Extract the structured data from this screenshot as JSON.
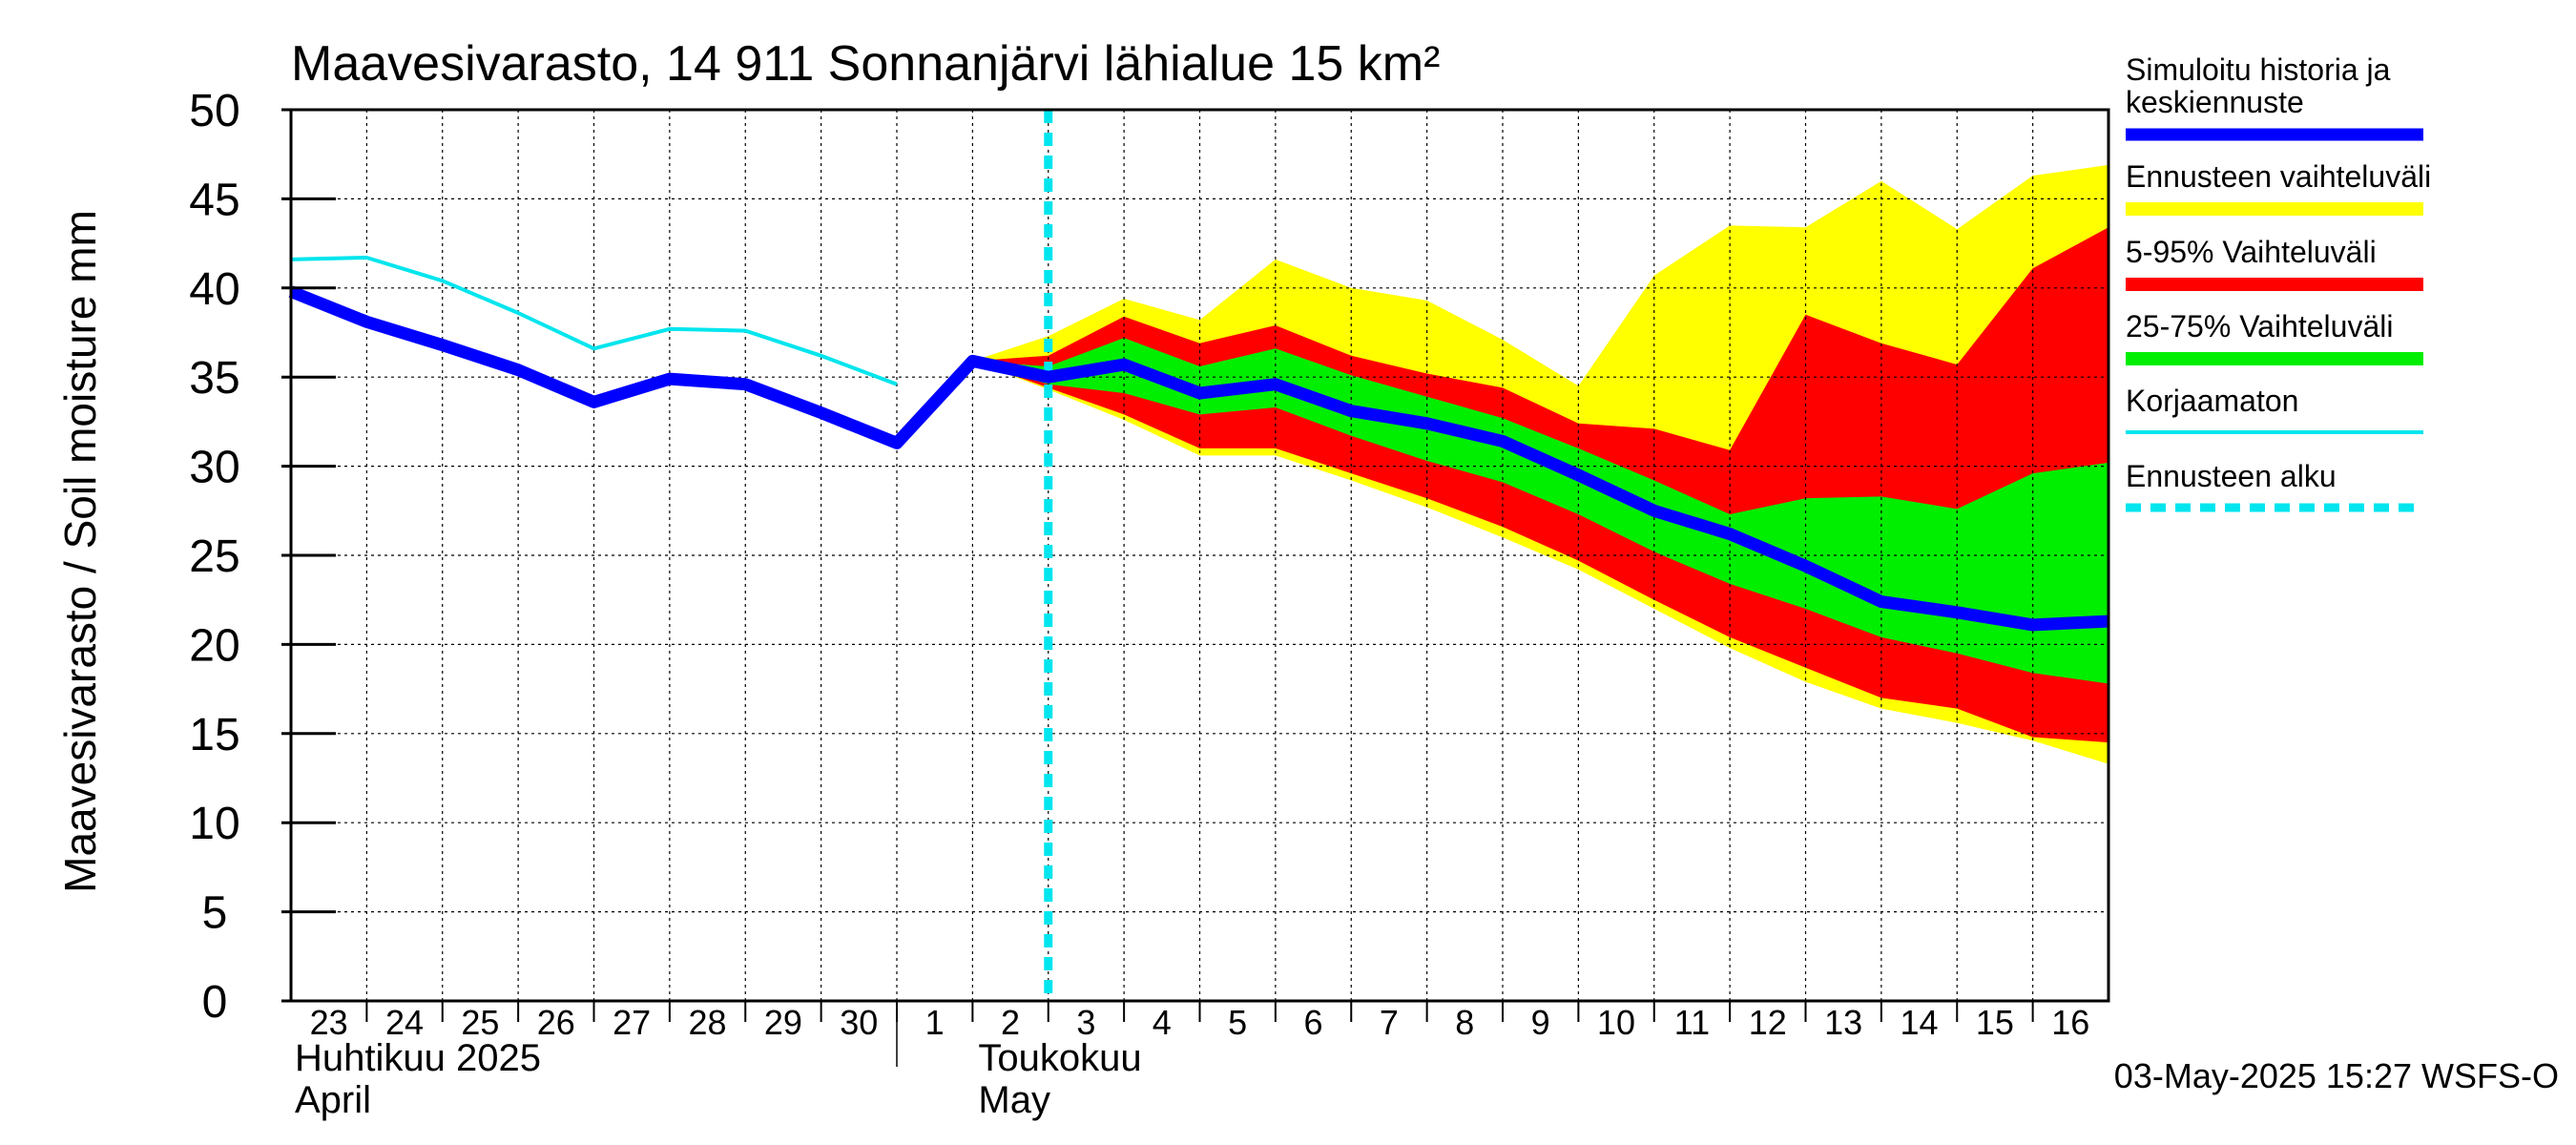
{
  "chart_data": {
    "type": "area",
    "title": "Maavesivarasto, 14 911 Sonnanjärvi lähialue 15 km²",
    "ylabel": "Maavesivarasto / Soil moisture   mm",
    "ylim": [
      0,
      50
    ],
    "yticks": [
      0,
      5,
      10,
      15,
      20,
      25,
      30,
      35,
      40,
      45,
      50
    ],
    "x_start": "2025-04-23",
    "x_end": "2025-05-17",
    "x_ticks": [
      "23",
      "24",
      "25",
      "26",
      "27",
      "28",
      "29",
      "30",
      "1",
      "2",
      "3",
      "4",
      "5",
      "6",
      "7",
      "8",
      "9",
      "10",
      "11",
      "12",
      "13",
      "14",
      "15",
      "16"
    ],
    "month_labels": [
      {
        "fi": "Huhtikuu  2025",
        "en": "April"
      },
      {
        "fi": "Toukokuu",
        "en": "May"
      }
    ],
    "forecast_start": "2025-05-03",
    "grid": true,
    "legend_position": "right",
    "colors": {
      "simulated": "#0000ff",
      "forecast_range": "#ffff00",
      "p5_95": "#ff0000",
      "p25_75": "#00ee00",
      "uncorrected": "#00e5ee",
      "forecast_start": "#00e5ee"
    },
    "series": [
      {
        "name": "Simuloitu historia ja keskiennuste",
        "key": "simulated",
        "x": [
          "2025-04-23",
          "2025-04-24",
          "2025-04-25",
          "2025-04-26",
          "2025-04-27",
          "2025-04-28",
          "2025-04-29",
          "2025-04-30",
          "2025-05-01",
          "2025-05-02",
          "2025-05-03",
          "2025-05-04",
          "2025-05-05",
          "2025-05-06",
          "2025-05-07",
          "2025-05-08",
          "2025-05-09",
          "2025-05-10",
          "2025-05-11",
          "2025-05-12",
          "2025-05-13",
          "2025-05-14",
          "2025-05-15",
          "2025-05-16",
          "2025-05-17"
        ],
        "values": [
          39.8,
          38.1,
          36.8,
          35.4,
          33.6,
          34.9,
          34.6,
          33.0,
          31.3,
          35.9,
          35.0,
          35.7,
          34.1,
          34.6,
          33.1,
          32.4,
          31.4,
          29.5,
          27.5,
          26.2,
          24.4,
          22.4,
          21.8,
          21.1,
          21.3
        ]
      },
      {
        "name": "Korjaamaton",
        "key": "uncorrected",
        "x": [
          "2025-04-23",
          "2025-04-24",
          "2025-04-25",
          "2025-04-26",
          "2025-04-27",
          "2025-04-28",
          "2025-04-29",
          "2025-04-30",
          "2025-05-01"
        ],
        "values": [
          41.6,
          41.7,
          40.4,
          38.6,
          36.6,
          37.7,
          37.6,
          36.2,
          34.6
        ]
      }
    ],
    "bands": [
      {
        "name": "Ennusteen vaihteluväli",
        "key": "forecast_range",
        "x": [
          "2025-05-02",
          "2025-05-03",
          "2025-05-04",
          "2025-05-05",
          "2025-05-06",
          "2025-05-07",
          "2025-05-08",
          "2025-05-09",
          "2025-05-10",
          "2025-05-11",
          "2025-05-12",
          "2025-05-13",
          "2025-05-14",
          "2025-05-15",
          "2025-05-16",
          "2025-05-17"
        ],
        "lower": [
          35.9,
          34.3,
          32.6,
          30.6,
          30.6,
          29.2,
          27.7,
          26.0,
          24.2,
          22.0,
          19.8,
          17.9,
          16.4,
          15.6,
          14.6,
          13.3
        ],
        "upper": [
          35.9,
          37.3,
          39.4,
          38.2,
          41.6,
          40.0,
          39.3,
          37.1,
          34.5,
          40.7,
          43.5,
          43.4,
          46.0,
          43.3,
          46.3,
          46.9
        ]
      },
      {
        "name": "5-95% Vaihteluväli",
        "key": "p5_95",
        "x": [
          "2025-05-02",
          "2025-05-03",
          "2025-05-04",
          "2025-05-05",
          "2025-05-06",
          "2025-05-07",
          "2025-05-08",
          "2025-05-09",
          "2025-05-10",
          "2025-05-11",
          "2025-05-12",
          "2025-05-13",
          "2025-05-14",
          "2025-05-15",
          "2025-05-16",
          "2025-05-17"
        ],
        "lower": [
          35.9,
          34.4,
          32.9,
          31.0,
          31.0,
          29.6,
          28.2,
          26.6,
          24.7,
          22.5,
          20.4,
          18.7,
          17.0,
          16.4,
          14.8,
          14.5
        ],
        "upper": [
          35.9,
          36.2,
          38.4,
          36.9,
          37.9,
          36.2,
          35.2,
          34.4,
          32.4,
          32.1,
          30.9,
          38.5,
          36.9,
          35.7,
          41.1,
          43.4
        ]
      },
      {
        "name": "25-75% Vaihteluväli",
        "key": "p25_75",
        "x": [
          "2025-05-02",
          "2025-05-03",
          "2025-05-04",
          "2025-05-05",
          "2025-05-06",
          "2025-05-07",
          "2025-05-08",
          "2025-05-09",
          "2025-05-10",
          "2025-05-11",
          "2025-05-12",
          "2025-05-13",
          "2025-05-14",
          "2025-05-15",
          "2025-05-16",
          "2025-05-17"
        ],
        "lower": [
          35.9,
          34.6,
          34.1,
          32.9,
          33.3,
          31.7,
          30.3,
          29.1,
          27.3,
          25.2,
          23.4,
          22.0,
          20.4,
          19.5,
          18.4,
          17.8
        ],
        "upper": [
          35.9,
          35.6,
          37.2,
          35.6,
          36.6,
          35.1,
          33.9,
          32.7,
          31.0,
          29.2,
          27.3,
          28.2,
          28.3,
          27.6,
          29.6,
          30.2
        ]
      }
    ],
    "legend": [
      {
        "label": "Simuloitu historia ja",
        "label2": "keskiennuste",
        "key": "simulated",
        "style": "thick"
      },
      {
        "label": "Ennusteen vaihteluväli",
        "key": "forecast_range",
        "style": "band"
      },
      {
        "label": "5-95% Vaihteluväli",
        "key": "p5_95",
        "style": "band"
      },
      {
        "label": "25-75% Vaihteluväli",
        "key": "p25_75",
        "style": "band"
      },
      {
        "label": "Korjaamaton",
        "key": "uncorrected",
        "style": "thin"
      },
      {
        "label": "Ennusteen alku",
        "key": "forecast_start",
        "style": "dashed"
      }
    ],
    "footer": "03-May-2025 15:27 WSFS-O"
  }
}
